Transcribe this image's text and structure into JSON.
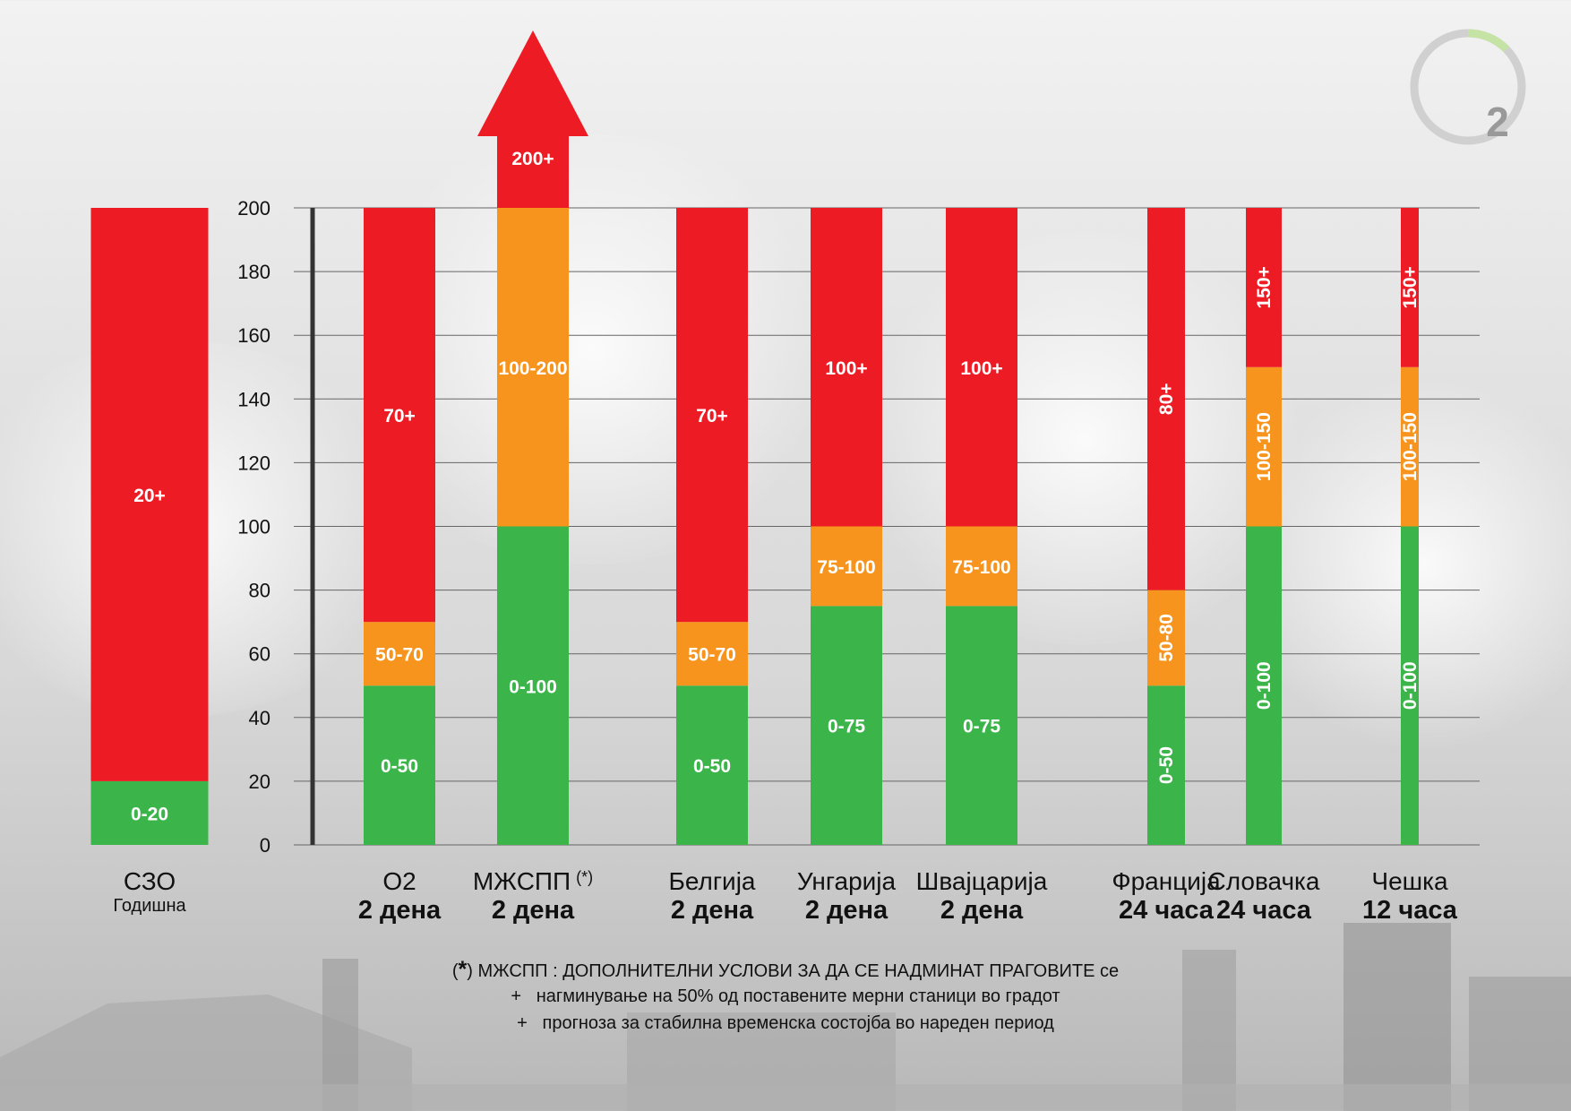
{
  "chart_data": {
    "type": "bar",
    "stacked": true,
    "ylim": [
      0,
      200
    ],
    "yticks": [
      "0",
      "20",
      "40",
      "60",
      "80",
      "100",
      "120",
      "140",
      "160",
      "180",
      "200"
    ],
    "grid": true,
    "colors": {
      "green": "#3bb54a",
      "orange": "#f7941e",
      "red": "#ed1c24"
    },
    "bars": [
      {
        "name": "СЗО",
        "sub": "Годишна",
        "segments": [
          {
            "from": 0,
            "to": 20,
            "color": "green",
            "label": "0-20"
          },
          {
            "from": 20,
            "to": 200,
            "color": "red",
            "label": "20+"
          }
        ]
      },
      {
        "name": "О2",
        "sub": "2 дена",
        "segments": [
          {
            "from": 0,
            "to": 50,
            "color": "green",
            "label": "0-50"
          },
          {
            "from": 50,
            "to": 70,
            "color": "orange",
            "label": "50-70"
          },
          {
            "from": 70,
            "to": 200,
            "color": "red",
            "label": "70+"
          }
        ]
      },
      {
        "name": "МЖСПП",
        "mark": "(*)",
        "sub": "2 дена",
        "arrow": true,
        "arrow_label": "200+",
        "segments": [
          {
            "from": 0,
            "to": 100,
            "color": "green",
            "label": "0-100"
          },
          {
            "from": 100,
            "to": 200,
            "color": "orange",
            "label": "100-200"
          }
        ]
      },
      {
        "name": "Белгија",
        "sub": "2 дена",
        "segments": [
          {
            "from": 0,
            "to": 50,
            "color": "green",
            "label": "0-50"
          },
          {
            "from": 50,
            "to": 70,
            "color": "orange",
            "label": "50-70"
          },
          {
            "from": 70,
            "to": 200,
            "color": "red",
            "label": "70+"
          }
        ]
      },
      {
        "name": "Унгарија",
        "sub": "2 дена",
        "segments": [
          {
            "from": 0,
            "to": 75,
            "color": "green",
            "label": "0-75"
          },
          {
            "from": 75,
            "to": 100,
            "color": "orange",
            "label": "75-100"
          },
          {
            "from": 100,
            "to": 200,
            "color": "red",
            "label": "100+"
          }
        ]
      },
      {
        "name": "Швајцарија",
        "sub": "2 дена",
        "segments": [
          {
            "from": 0,
            "to": 75,
            "color": "green",
            "label": "0-75"
          },
          {
            "from": 75,
            "to": 100,
            "color": "orange",
            "label": "75-100"
          },
          {
            "from": 100,
            "to": 200,
            "color": "red",
            "label": "100+"
          }
        ]
      },
      {
        "name": "Франција",
        "sub": "24 часа",
        "vertical_labels": true,
        "segments": [
          {
            "from": 0,
            "to": 50,
            "color": "green",
            "label": "0-50"
          },
          {
            "from": 50,
            "to": 80,
            "color": "orange",
            "label": "50-80"
          },
          {
            "from": 80,
            "to": 200,
            "color": "red",
            "label": "80+"
          }
        ]
      },
      {
        "name": "Словачка",
        "sub": "24 часа",
        "vertical_labels": true,
        "segments": [
          {
            "from": 0,
            "to": 100,
            "color": "green",
            "label": "0-100"
          },
          {
            "from": 100,
            "to": 150,
            "color": "orange",
            "label": "100-150"
          },
          {
            "from": 150,
            "to": 200,
            "color": "red",
            "label": "150+"
          }
        ]
      },
      {
        "name": "Чешка",
        "sub": "12 часа",
        "vertical_labels": true,
        "segments": [
          {
            "from": 0,
            "to": 100,
            "color": "green",
            "label": "0-100"
          },
          {
            "from": 100,
            "to": 150,
            "color": "orange",
            "label": "100-150"
          },
          {
            "from": 150,
            "to": 200,
            "color": "red",
            "label": "150+"
          }
        ]
      }
    ]
  },
  "footnote": {
    "mark": "*",
    "text": "МЖСПП : ДОПОЛНИТЕЛНИ УСЛОВИ ЗА ДА СЕ НАДМИНАТ ПРАГОВИТЕ се",
    "items": [
      "нагминување на 50% од поставените мерни станици во градот",
      "прогноза за стабилна временска состојба во нареден период"
    ],
    "bullet": "+"
  },
  "logo": {
    "text": "2",
    "ring_color": "#d0d0d0",
    "accent_color": "#c5e3a5",
    "text_color": "#999999"
  }
}
